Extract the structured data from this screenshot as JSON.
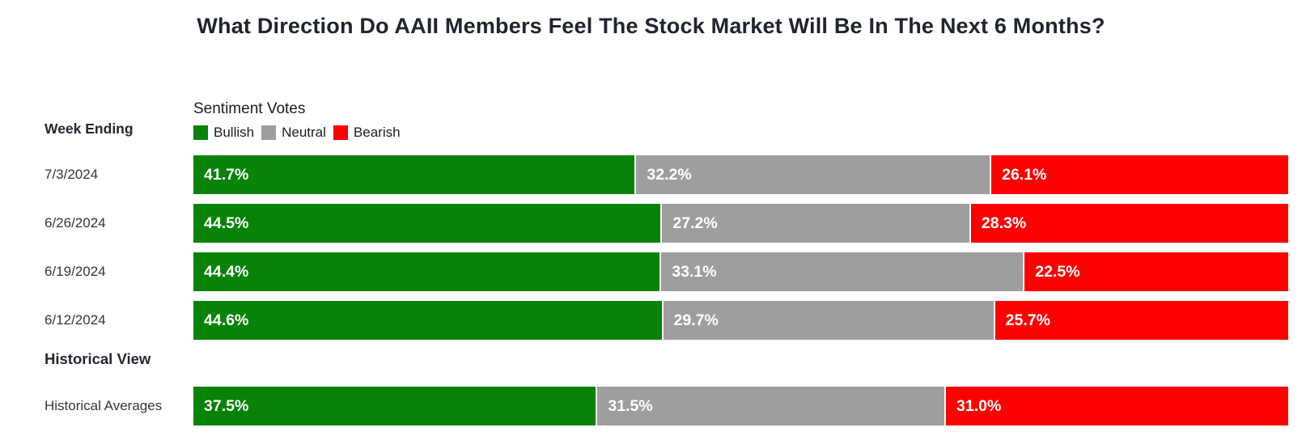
{
  "header": {
    "week_ending_label": "Week Ending",
    "legend_title": "Sentiment Votes",
    "historical_section_label": "Historical View"
  },
  "colors": {
    "bullish": "#078307",
    "neutral": "#9e9e9e",
    "bearish": "#fe0000",
    "title_text": "#20242e"
  },
  "chart_data": {
    "type": "bar",
    "subtype": "horizontal-stacked-100pct",
    "title": "What Direction Do AAII Members Feel The Stock Market Will Be In The Next 6 Months?",
    "legend_title": "Sentiment Votes",
    "legend_position": "top-left-of-bars",
    "unit": "%",
    "xlim": [
      0,
      100
    ],
    "grid": false,
    "categories": [
      "7/3/2024",
      "6/26/2024",
      "6/19/2024",
      "6/12/2024"
    ],
    "series": [
      {
        "name": "Bullish",
        "color": "#078307",
        "values": [
          41.7,
          44.5,
          44.4,
          44.6
        ]
      },
      {
        "name": "Neutral",
        "color": "#9e9e9e",
        "values": [
          32.2,
          27.2,
          33.1,
          29.7
        ]
      },
      {
        "name": "Bearish",
        "color": "#fe0000",
        "values": [
          26.1,
          28.3,
          22.5,
          25.7
        ]
      }
    ],
    "historical_averages": {
      "label": "Historical Averages",
      "values": [
        37.5,
        31.5,
        31.0
      ]
    }
  }
}
